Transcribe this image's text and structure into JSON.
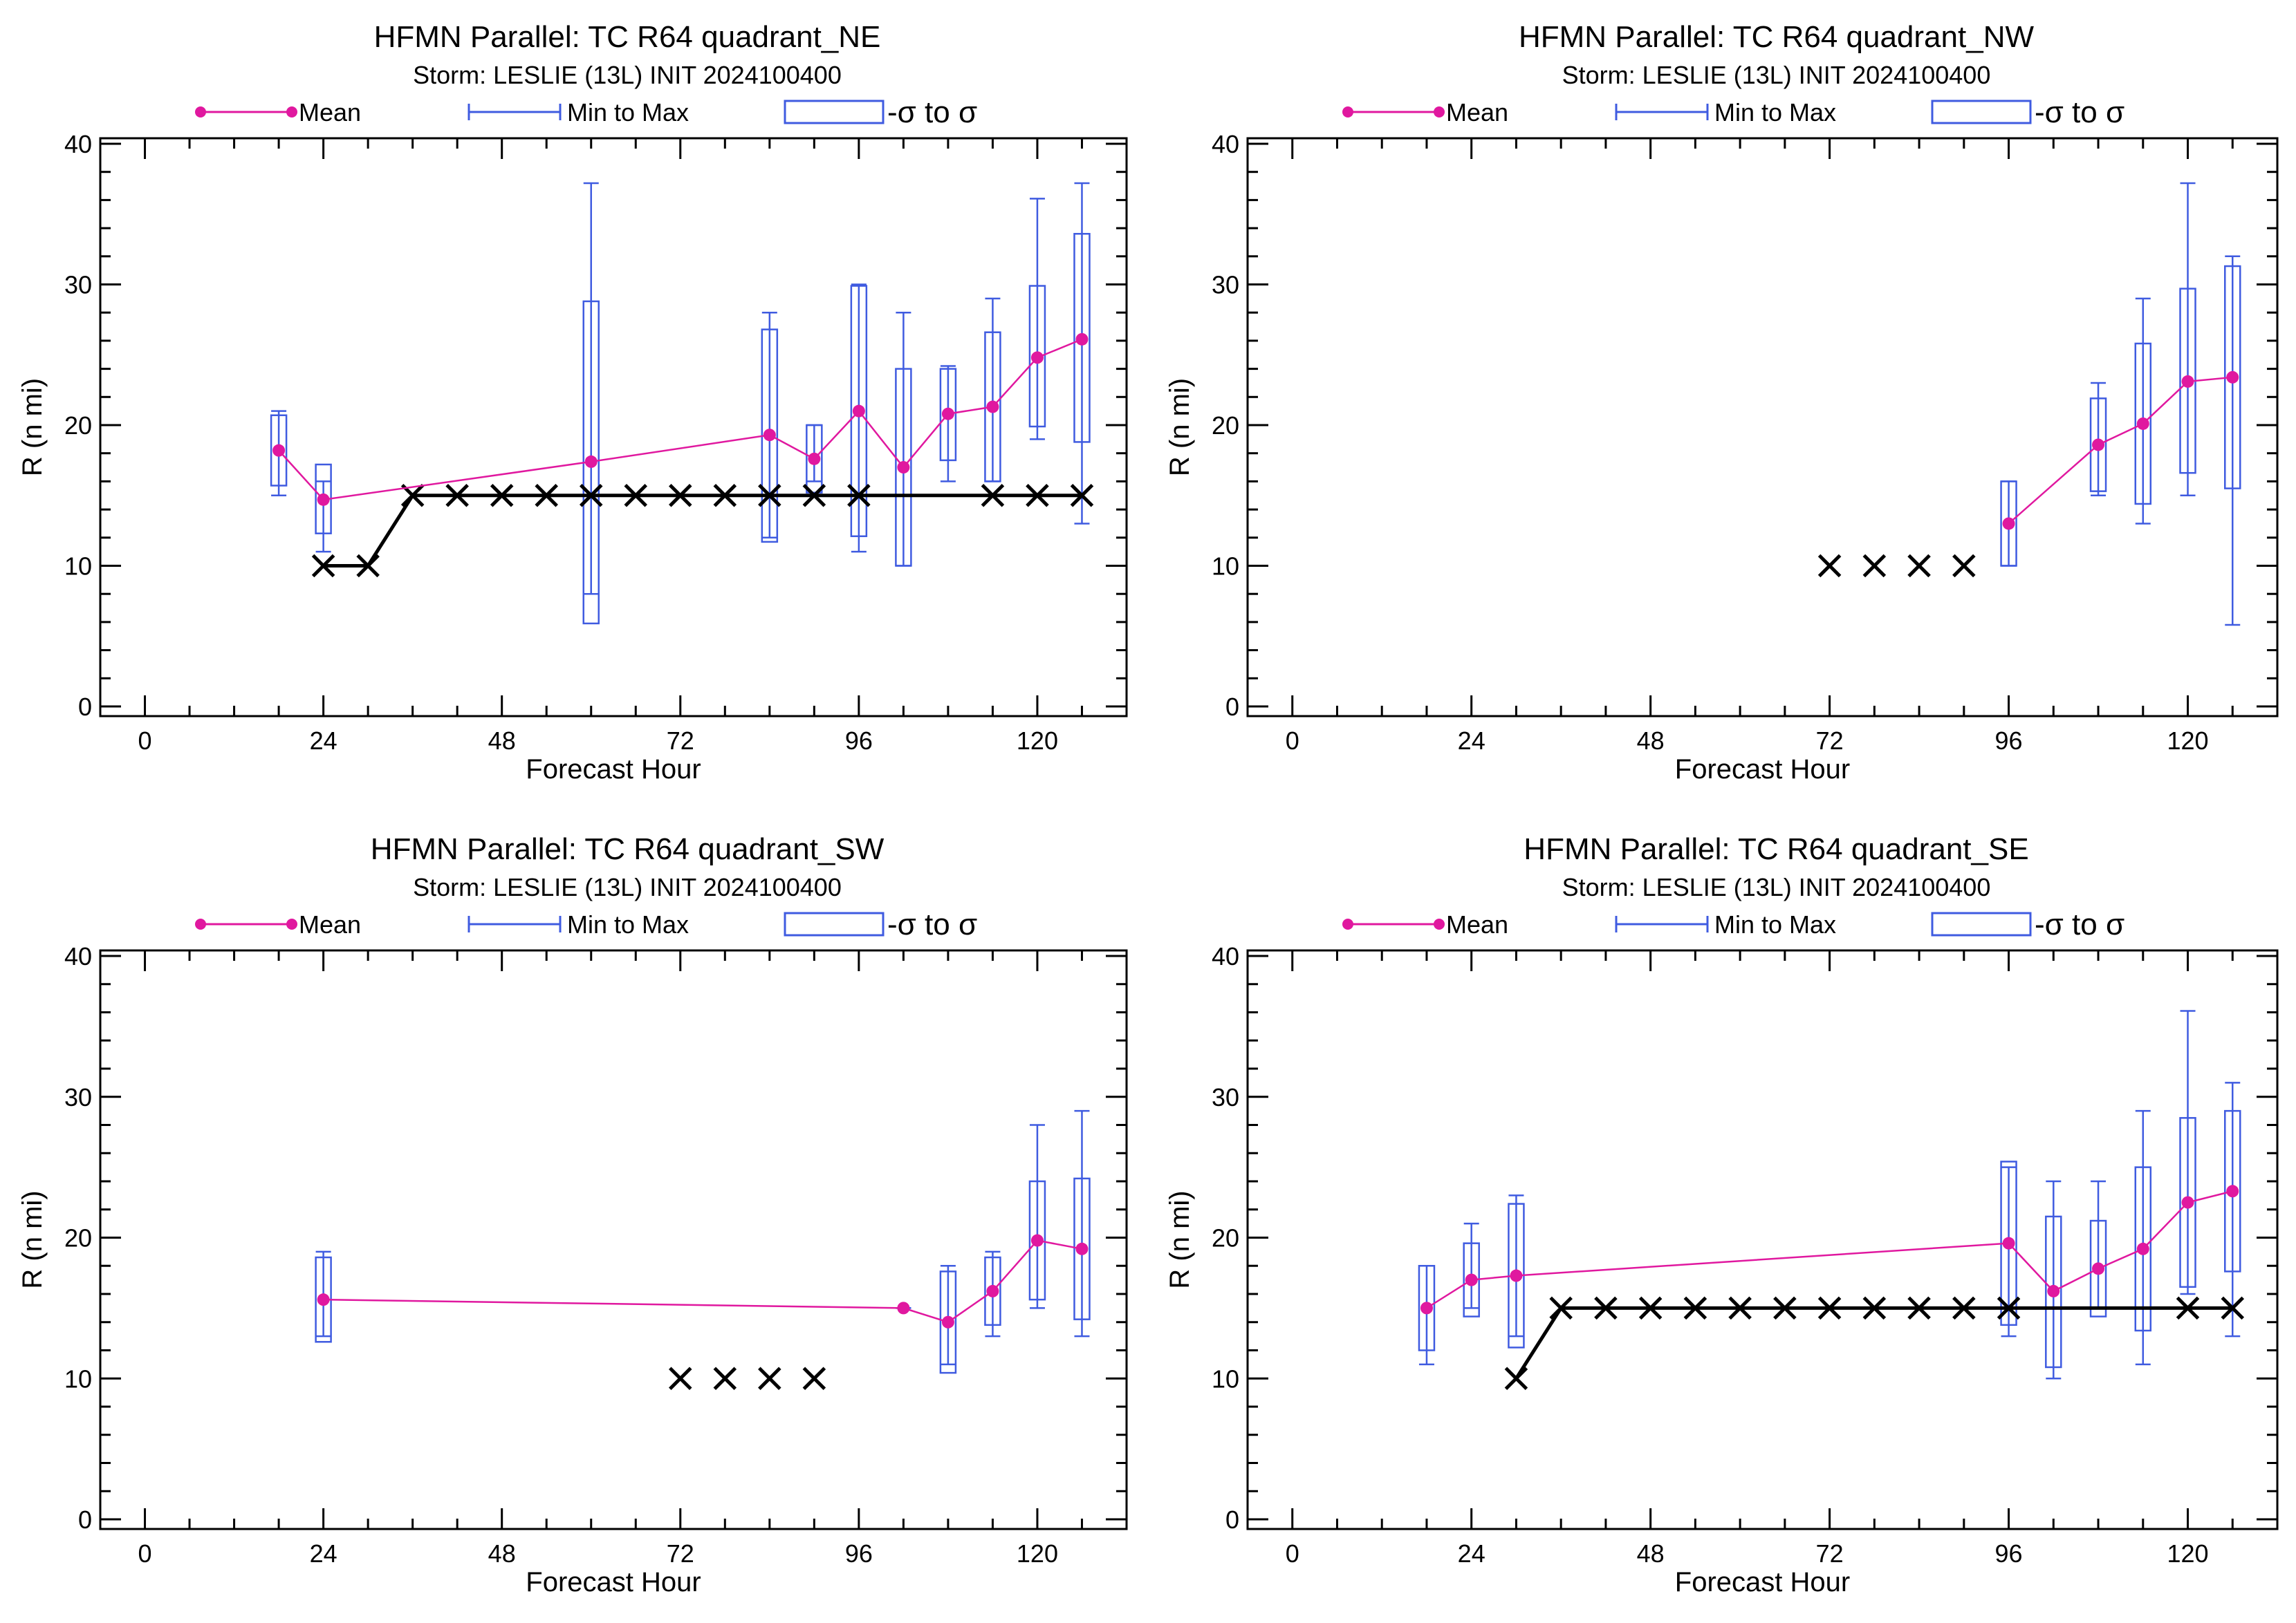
{
  "legend": {
    "mean": "Mean",
    "minmax": "Min to Max",
    "sigma": "-σ to σ"
  },
  "colors": {
    "mean": "#e0189f",
    "box": "#3f5be0",
    "best_track": "#000000",
    "axis": "#000000"
  },
  "chart_data": [
    {
      "type": "box",
      "title": "HFMN Parallel: TC  R64 quadrant_NE",
      "subtitle": "Storm: LESLIE (13L) INIT 2024100400",
      "xlabel": "Forecast Hour",
      "ylabel": "R (n mi)",
      "xlim": [
        -6,
        132
      ],
      "ylim": [
        0,
        40
      ],
      "xticks": [
        0,
        24,
        48,
        72,
        96,
        120
      ],
      "yticks": [
        0,
        10,
        20,
        30,
        40
      ],
      "mean": [
        [
          18,
          18.2
        ],
        [
          24,
          14.7
        ],
        [
          60,
          17.4
        ],
        [
          84,
          19.3
        ],
        [
          90,
          17.6
        ],
        [
          96,
          21.0
        ],
        [
          102,
          17.0
        ],
        [
          108,
          20.8
        ],
        [
          114,
          21.3
        ],
        [
          120,
          24.8
        ],
        [
          126,
          26.1
        ]
      ],
      "minmax": [
        [
          18,
          15,
          21
        ],
        [
          24,
          11,
          16
        ],
        [
          60,
          8,
          37.2
        ],
        [
          84,
          12,
          28
        ],
        [
          90,
          16,
          20
        ],
        [
          96,
          11,
          30
        ],
        [
          102,
          10,
          28
        ],
        [
          108,
          16,
          24.2
        ],
        [
          114,
          16,
          29
        ],
        [
          120,
          19,
          36.1
        ],
        [
          126,
          13,
          37.2
        ]
      ],
      "sigma": [
        [
          18,
          15.7,
          20.7
        ],
        [
          24,
          12.3,
          17.2
        ],
        [
          60,
          5.9,
          28.8
        ],
        [
          84,
          11.7,
          26.8
        ],
        [
          90,
          15.2,
          20.0
        ],
        [
          96,
          12.1,
          29.9
        ],
        [
          102,
          10.0,
          24.0
        ],
        [
          108,
          17.5,
          24.0
        ],
        [
          114,
          16.0,
          26.6
        ],
        [
          120,
          19.9,
          29.9
        ],
        [
          126,
          18.8,
          33.6
        ]
      ],
      "best_track": [
        [
          24,
          10
        ],
        [
          30,
          10
        ],
        [
          36,
          15
        ],
        [
          42,
          15
        ],
        [
          48,
          15
        ],
        [
          54,
          15
        ],
        [
          60,
          15
        ],
        [
          66,
          15
        ],
        [
          72,
          15
        ],
        [
          78,
          15
        ],
        [
          84,
          15
        ],
        [
          90,
          15
        ],
        [
          96,
          15
        ],
        [
          114,
          15
        ],
        [
          120,
          15
        ],
        [
          126,
          15
        ]
      ],
      "best_track_line": [
        [
          [
            24,
            10
          ],
          [
            30,
            10
          ],
          [
            36,
            15
          ],
          [
            126,
            15
          ]
        ]
      ]
    },
    {
      "type": "box",
      "title": "HFMN Parallel: TC  R64 quadrant_NW",
      "subtitle": "Storm: LESLIE (13L) INIT 2024100400",
      "xlabel": "Forecast Hour",
      "ylabel": "R (n mi)",
      "xlim": [
        -6,
        132
      ],
      "ylim": [
        0,
        40
      ],
      "xticks": [
        0,
        24,
        48,
        72,
        96,
        120
      ],
      "yticks": [
        0,
        10,
        20,
        30,
        40
      ],
      "mean": [
        [
          96,
          13.0
        ],
        [
          108,
          18.6
        ],
        [
          114,
          20.1
        ],
        [
          120,
          23.1
        ],
        [
          126,
          23.4
        ]
      ],
      "minmax": [
        [
          96,
          10,
          16
        ],
        [
          108,
          15,
          23
        ],
        [
          114,
          13,
          29
        ],
        [
          120,
          15,
          37.2
        ],
        [
          126,
          5.8,
          32
        ]
      ],
      "sigma": [
        [
          96,
          10,
          16
        ],
        [
          108,
          15.3,
          21.9
        ],
        [
          114,
          14.4,
          25.8
        ],
        [
          120,
          16.6,
          29.7
        ],
        [
          126,
          15.5,
          31.3
        ]
      ],
      "best_track": [
        [
          72,
          10
        ],
        [
          78,
          10
        ],
        [
          84,
          10
        ],
        [
          90,
          10
        ]
      ],
      "best_track_line": []
    },
    {
      "type": "box",
      "title": "HFMN Parallel: TC  R64 quadrant_SW",
      "subtitle": "Storm: LESLIE (13L) INIT 2024100400",
      "xlabel": "Forecast Hour",
      "ylabel": "R (n mi)",
      "xlim": [
        -6,
        132
      ],
      "ylim": [
        0,
        40
      ],
      "xticks": [
        0,
        24,
        48,
        72,
        96,
        120
      ],
      "yticks": [
        0,
        10,
        20,
        30,
        40
      ],
      "mean": [
        [
          24,
          15.6
        ],
        [
          102,
          15.0
        ],
        [
          108,
          14.0
        ],
        [
          114,
          16.2
        ],
        [
          120,
          19.8
        ],
        [
          126,
          19.2
        ]
      ],
      "minmax": [
        [
          24,
          13,
          19
        ],
        [
          102,
          15,
          15
        ],
        [
          108,
          11,
          18
        ],
        [
          114,
          13,
          19
        ],
        [
          120,
          15,
          28
        ],
        [
          126,
          13,
          29
        ]
      ],
      "sigma": [
        [
          24,
          12.6,
          18.6
        ],
        [
          108,
          10.4,
          17.6
        ],
        [
          114,
          13.8,
          18.6
        ],
        [
          120,
          15.6,
          24.0
        ],
        [
          126,
          14.2,
          24.2
        ]
      ],
      "best_track": [
        [
          72,
          10
        ],
        [
          78,
          10
        ],
        [
          84,
          10
        ],
        [
          90,
          10
        ]
      ],
      "best_track_line": []
    },
    {
      "type": "box",
      "title": "HFMN Parallel: TC  R64 quadrant_SE",
      "subtitle": "Storm: LESLIE (13L) INIT 2024100400",
      "xlabel": "Forecast Hour",
      "ylabel": "R (n mi)",
      "xlim": [
        -6,
        132
      ],
      "ylim": [
        0,
        40
      ],
      "xticks": [
        0,
        24,
        48,
        72,
        96,
        120
      ],
      "yticks": [
        0,
        10,
        20,
        30,
        40
      ],
      "mean": [
        [
          18,
          15.0
        ],
        [
          24,
          17.0
        ],
        [
          30,
          17.3
        ],
        [
          96,
          19.6
        ],
        [
          102,
          16.2
        ],
        [
          108,
          17.8
        ],
        [
          114,
          19.2
        ],
        [
          120,
          22.5
        ],
        [
          126,
          23.3
        ]
      ],
      "minmax": [
        [
          18,
          11,
          18
        ],
        [
          24,
          15,
          21
        ],
        [
          30,
          13,
          23
        ],
        [
          96,
          13,
          25
        ],
        [
          102,
          10,
          24
        ],
        [
          108,
          15,
          24
        ],
        [
          114,
          11,
          29
        ],
        [
          120,
          16,
          36.1
        ],
        [
          126,
          13,
          31
        ]
      ],
      "sigma": [
        [
          18,
          12.0,
          18.0
        ],
        [
          24,
          14.4,
          19.6
        ],
        [
          30,
          12.2,
          22.4
        ],
        [
          96,
          13.8,
          25.4
        ],
        [
          102,
          10.8,
          21.5
        ],
        [
          108,
          14.4,
          21.2
        ],
        [
          114,
          13.4,
          25.0
        ],
        [
          120,
          16.5,
          28.5
        ],
        [
          126,
          17.6,
          29.0
        ]
      ],
      "best_track": [
        [
          30,
          10
        ],
        [
          36,
          15
        ],
        [
          42,
          15
        ],
        [
          48,
          15
        ],
        [
          54,
          15
        ],
        [
          60,
          15
        ],
        [
          66,
          15
        ],
        [
          72,
          15
        ],
        [
          78,
          15
        ],
        [
          84,
          15
        ],
        [
          90,
          15
        ],
        [
          96,
          15
        ],
        [
          120,
          15
        ],
        [
          126,
          15
        ]
      ],
      "best_track_line": [
        [
          [
            30,
            10
          ],
          [
            36,
            15
          ],
          [
            126,
            15
          ]
        ]
      ]
    }
  ]
}
